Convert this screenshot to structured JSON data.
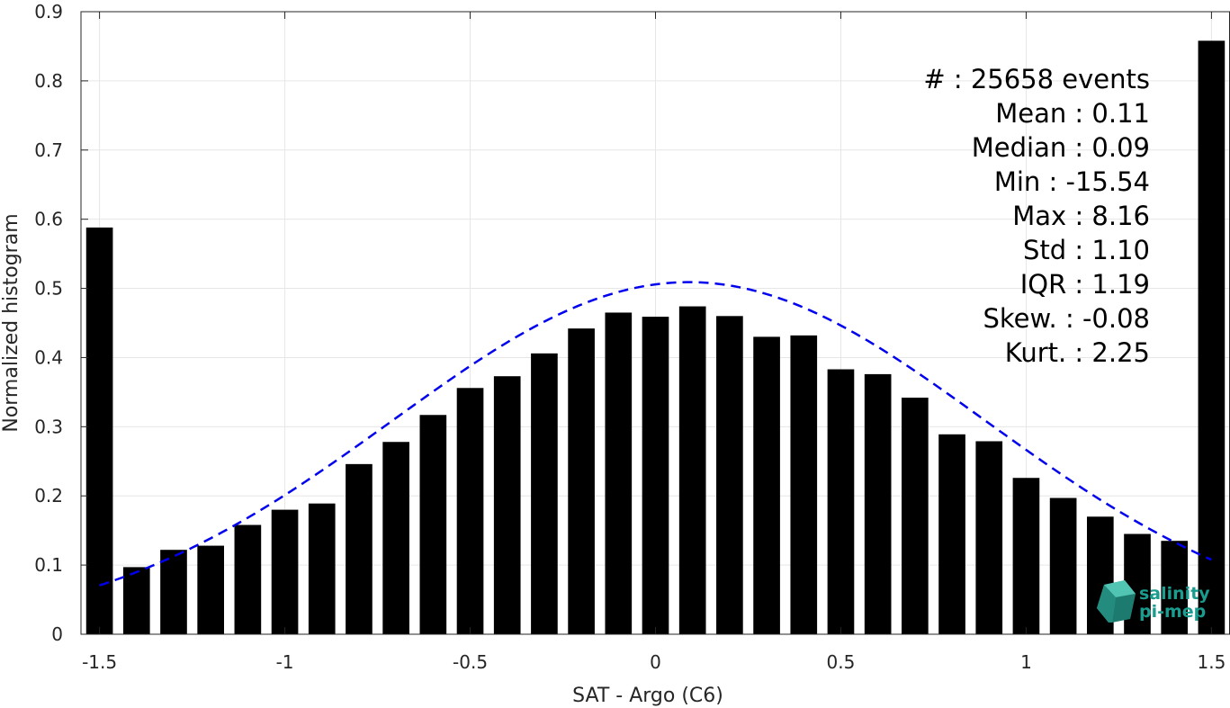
{
  "chart_data": {
    "type": "bar",
    "xlabel": "SAT - Argo (C6)",
    "ylabel": "Normalized histogram",
    "xlim": [
      -1.55,
      1.55
    ],
    "ylim": [
      0,
      0.9
    ],
    "xticks": [
      "-1.5",
      "-1",
      "-0.5",
      "0",
      "0.5",
      "1",
      "1.5"
    ],
    "xtick_values": [
      -1.5,
      -1,
      -0.5,
      0,
      0.5,
      1,
      1.5
    ],
    "yticks": [
      "0",
      "0.1",
      "0.2",
      "0.3",
      "0.4",
      "0.5",
      "0.6",
      "0.7",
      "0.8",
      "0.9"
    ],
    "ytick_values": [
      0,
      0.1,
      0.2,
      0.3,
      0.4,
      0.5,
      0.6,
      0.7,
      0.8,
      0.9
    ],
    "grid": true,
    "bar_color": "#000000",
    "curve_color": "#0000ee",
    "bin_width": 0.1,
    "x": [
      -1.5,
      -1.4,
      -1.3,
      -1.2,
      -1.1,
      -1.0,
      -0.9,
      -0.8,
      -0.7,
      -0.6,
      -0.5,
      -0.4,
      -0.3,
      -0.2,
      -0.1,
      0.0,
      0.1,
      0.2,
      0.3,
      0.4,
      0.5,
      0.6,
      0.7,
      0.8,
      0.9,
      1.0,
      1.1,
      1.2,
      1.3,
      1.4,
      1.5
    ],
    "values": [
      0.588,
      0.097,
      0.122,
      0.128,
      0.158,
      0.18,
      0.189,
      0.246,
      0.278,
      0.317,
      0.356,
      0.373,
      0.406,
      0.442,
      0.465,
      0.459,
      0.474,
      0.46,
      0.43,
      0.432,
      0.383,
      0.376,
      0.342,
      0.289,
      0.279,
      0.226,
      0.197,
      0.17,
      0.145,
      0.135,
      0.858
    ],
    "fit": {
      "type": "gaussian",
      "style": "dashed",
      "mean": 0.09,
      "amplitude": 0.509,
      "sigma": 0.8,
      "x_range": [
        -1.5,
        1.5
      ]
    }
  },
  "stats": [
    "#  : 25658 events",
    "Mean : 0.11",
    "Median : 0.09",
    "Min : -15.54",
    "Max : 8.16",
    "Std : 1.10",
    "IQR : 1.19",
    "Skew. : -0.08",
    "Kurt. : 2.25"
  ],
  "logo": {
    "line1": "salinity",
    "line2": "pi-mep",
    "color": "#1a9c8f"
  }
}
